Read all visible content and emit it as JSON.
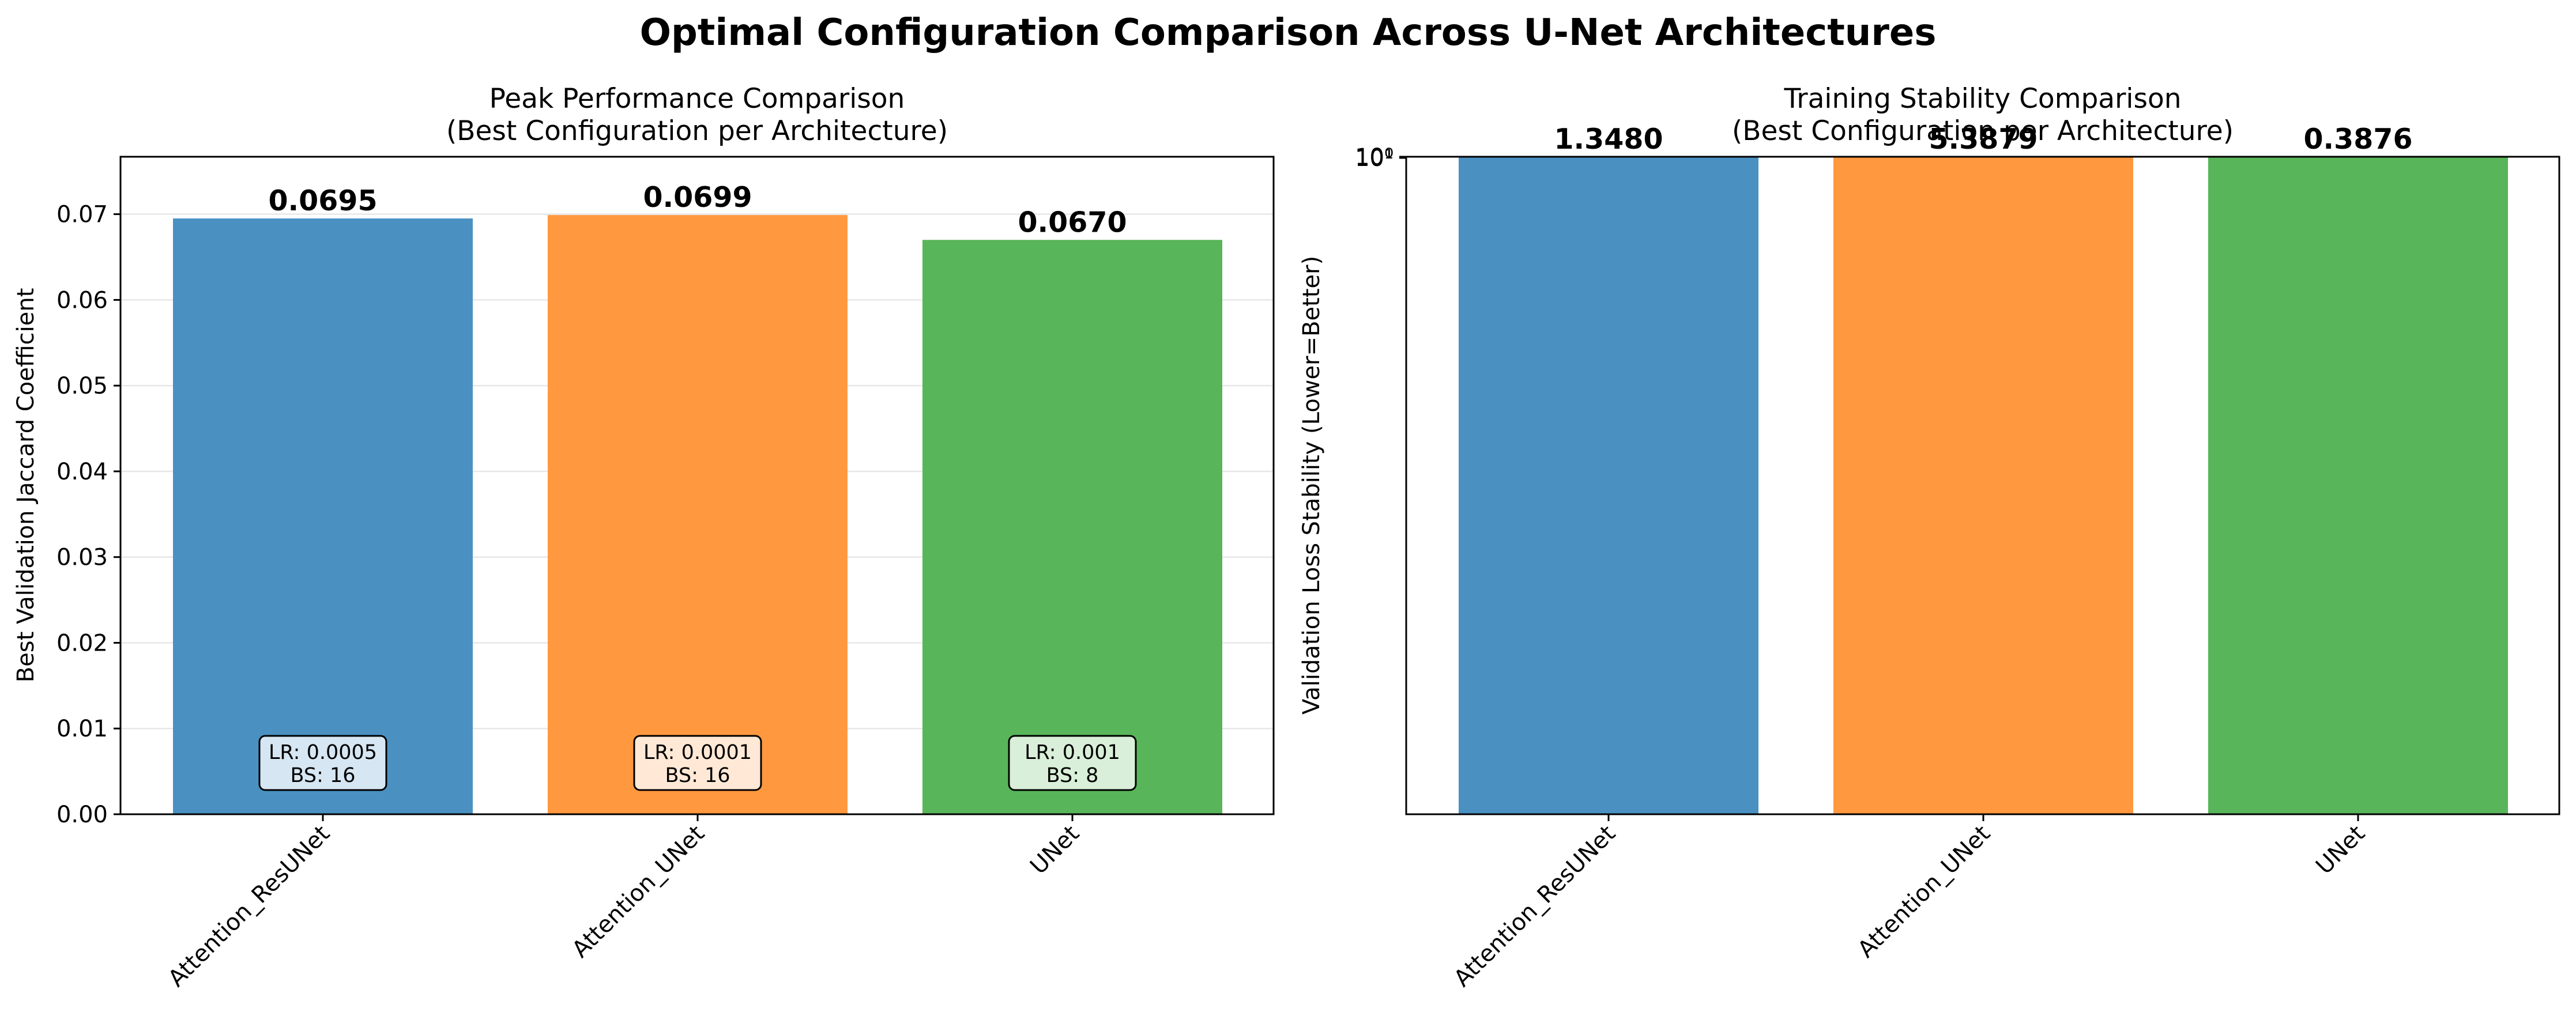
{
  "figure": {
    "title": "Optimal Configuration Comparison Across U-Net Architectures"
  },
  "chart_data": [
    {
      "type": "bar",
      "title": "Peak Performance Comparison",
      "subtitle": "(Best Configuration per Architecture)",
      "xlabel": "",
      "ylabel": "Best Validation Jaccard Coefficient",
      "categories": [
        "Attention_ResUNet",
        "Attention_UNet",
        "UNet"
      ],
      "values": [
        0.0695,
        0.0699,
        0.067
      ],
      "value_labels": [
        "0.0695",
        "0.0699",
        "0.0670"
      ],
      "colors": [
        "#4a91c2",
        "#ff983f",
        "#59b559"
      ],
      "annotations": [
        {
          "line1": "LR: 0.0005",
          "line2": "BS: 16",
          "box_color": "#d6e6f2"
        },
        {
          "line1": "LR: 0.0001",
          "line2": "BS: 16",
          "box_color": "#ffe9d6"
        },
        {
          "line1": "LR: 0.001",
          "line2": "BS: 8",
          "box_color": "#d9efd9"
        }
      ],
      "ylim": [
        0,
        0.0767
      ],
      "yticks": [
        0.0,
        0.01,
        0.02,
        0.03,
        0.04,
        0.05,
        0.06,
        0.07
      ],
      "ytick_labels": [
        "0.00",
        "0.01",
        "0.02",
        "0.03",
        "0.04",
        "0.05",
        "0.06",
        "0.07"
      ],
      "grid": true,
      "legend": "none"
    },
    {
      "type": "bar",
      "title": "Training Stability Comparison",
      "subtitle": "(Best Configuration per Architecture)",
      "xlabel": "",
      "ylabel": "Validation Loss Stability (Lower=Better)",
      "categories": [
        "Attention_ResUNet",
        "Attention_UNet",
        "UNet"
      ],
      "values": [
        1.348,
        5.3879,
        0.3876
      ],
      "value_labels": [
        "1.3480",
        "5.3879",
        "0.3876"
      ],
      "colors": [
        "#4a91c2",
        "#ff983f",
        "#59b559"
      ],
      "yscale": "log",
      "ytick_labels": [
        "10⁰",
        "10¹"
      ],
      "grid": false,
      "legend": "none"
    }
  ]
}
